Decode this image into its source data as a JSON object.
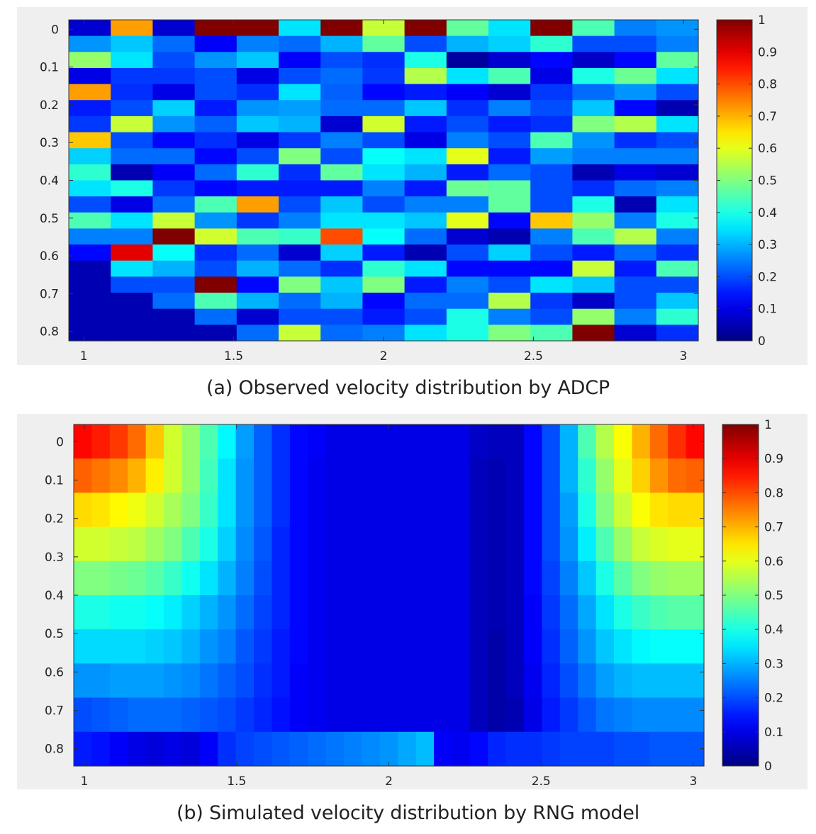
{
  "figure": {
    "caption_a": "(a) Observed velocity distribution by ADCP",
    "caption_b": "(b) Simulated velocity distribution by RNG model"
  },
  "chart_data": [
    {
      "type": "heatmap",
      "colormap": "jet",
      "x_ticks": [
        "1",
        "1.5",
        "2",
        "2.5",
        "3"
      ],
      "x_tick_values": [
        1,
        1.5,
        2,
        2.5,
        3
      ],
      "y_ticks": [
        "0",
        "0.1",
        "0.2",
        "0.3",
        "0.4",
        "0.5",
        "0.6",
        "0.7",
        "0.8"
      ],
      "y_tick_values": [
        0,
        0.1,
        0.2,
        0.3,
        0.4,
        0.5,
        0.6,
        0.7,
        0.8
      ],
      "xlim": [
        0.95,
        3.05
      ],
      "ylim": [
        0.825,
        -0.025
      ],
      "colorbar_ticks": [
        "0",
        "0.1",
        "0.2",
        "0.3",
        "0.4",
        "0.5",
        "0.6",
        "0.7",
        "0.8",
        "0.9",
        "1"
      ],
      "clim": [
        0,
        1
      ],
      "grid": false,
      "values": [
        [
          0.08,
          0.72,
          0.08,
          1.0,
          1.0,
          0.35,
          1.0,
          0.57,
          1.0,
          0.47,
          0.35,
          1.0,
          0.45,
          0.25,
          0.27
        ],
        [
          0.27,
          0.32,
          0.23,
          0.12,
          0.25,
          0.23,
          0.3,
          0.47,
          0.2,
          0.3,
          0.33,
          0.42,
          0.2,
          0.2,
          0.25
        ],
        [
          0.52,
          0.35,
          0.2,
          0.27,
          0.32,
          0.12,
          0.2,
          0.17,
          0.4,
          0.03,
          0.08,
          0.13,
          0.07,
          0.13,
          0.47
        ],
        [
          0.1,
          0.18,
          0.18,
          0.2,
          0.1,
          0.2,
          0.23,
          0.18,
          0.55,
          0.35,
          0.45,
          0.1,
          0.4,
          0.48,
          0.35
        ],
        [
          0.72,
          0.17,
          0.1,
          0.2,
          0.17,
          0.35,
          0.22,
          0.13,
          0.15,
          0.12,
          0.08,
          0.18,
          0.23,
          0.27,
          0.2
        ],
        [
          0.15,
          0.2,
          0.33,
          0.15,
          0.27,
          0.28,
          0.23,
          0.23,
          0.32,
          0.17,
          0.25,
          0.2,
          0.32,
          0.13,
          0.05
        ],
        [
          0.18,
          0.57,
          0.27,
          0.22,
          0.32,
          0.3,
          0.08,
          0.58,
          0.15,
          0.2,
          0.15,
          0.17,
          0.5,
          0.55,
          0.35
        ],
        [
          0.68,
          0.2,
          0.13,
          0.17,
          0.1,
          0.18,
          0.25,
          0.2,
          0.1,
          0.25,
          0.2,
          0.45,
          0.27,
          0.17,
          0.2
        ],
        [
          0.33,
          0.23,
          0.23,
          0.13,
          0.2,
          0.5,
          0.2,
          0.38,
          0.35,
          0.6,
          0.15,
          0.28,
          0.25,
          0.25,
          0.25
        ],
        [
          0.42,
          0.05,
          0.12,
          0.23,
          0.42,
          0.17,
          0.47,
          0.35,
          0.3,
          0.15,
          0.23,
          0.2,
          0.05,
          0.1,
          0.08
        ],
        [
          0.35,
          0.4,
          0.18,
          0.13,
          0.15,
          0.15,
          0.15,
          0.25,
          0.15,
          0.48,
          0.47,
          0.2,
          0.17,
          0.23,
          0.25
        ],
        [
          0.2,
          0.1,
          0.23,
          0.45,
          0.72,
          0.2,
          0.32,
          0.2,
          0.25,
          0.25,
          0.47,
          0.2,
          0.4,
          0.05,
          0.35
        ],
        [
          0.45,
          0.35,
          0.57,
          0.27,
          0.18,
          0.25,
          0.35,
          0.35,
          0.32,
          0.6,
          0.13,
          0.68,
          0.52,
          0.25,
          0.4
        ],
        [
          0.25,
          0.25,
          1.0,
          0.58,
          0.45,
          0.43,
          0.8,
          0.38,
          0.23,
          0.08,
          0.05,
          0.25,
          0.45,
          0.55,
          0.25
        ],
        [
          0.13,
          0.9,
          0.38,
          0.17,
          0.23,
          0.08,
          0.33,
          0.15,
          0.05,
          0.2,
          0.33,
          0.2,
          0.15,
          0.23,
          0.17
        ],
        [
          0.05,
          0.35,
          0.3,
          0.2,
          0.3,
          0.23,
          0.17,
          0.42,
          0.35,
          0.13,
          0.13,
          0.13,
          0.57,
          0.15,
          0.45
        ],
        [
          0.05,
          0.2,
          0.2,
          1.0,
          0.13,
          0.5,
          0.32,
          0.5,
          0.15,
          0.25,
          0.2,
          0.35,
          0.32,
          0.2,
          0.2
        ],
        [
          0.05,
          0.05,
          0.23,
          0.45,
          0.3,
          0.23,
          0.3,
          0.13,
          0.23,
          0.23,
          0.55,
          0.18,
          0.07,
          0.2,
          0.32
        ],
        [
          0.05,
          0.05,
          0.05,
          0.23,
          0.08,
          0.2,
          0.2,
          0.15,
          0.2,
          0.4,
          0.25,
          0.2,
          0.52,
          0.25,
          0.42
        ],
        [
          0.05,
          0.05,
          0.05,
          0.05,
          0.23,
          0.57,
          0.23,
          0.25,
          0.35,
          0.4,
          0.5,
          0.45,
          1.0,
          0.08,
          0.17
        ]
      ]
    },
    {
      "type": "heatmap",
      "colormap": "jet",
      "x_ticks": [
        "1",
        "1.5",
        "2",
        "2.5",
        "3"
      ],
      "x_tick_values": [
        1,
        1.5,
        2,
        2.5,
        3
      ],
      "y_ticks": [
        "0",
        "0.1",
        "0.2",
        "0.3",
        "0.4",
        "0.5",
        "0.6",
        "0.7",
        "0.8"
      ],
      "y_tick_values": [
        0,
        0.1,
        0.2,
        0.3,
        0.4,
        0.5,
        0.6,
        0.7,
        0.8
      ],
      "xlim": [
        0.965,
        3.035
      ],
      "ylim": [
        0.845,
        -0.045
      ],
      "colorbar_ticks": [
        "0",
        "0.1",
        "0.2",
        "0.3",
        "0.4",
        "0.5",
        "0.6",
        "0.7",
        "0.8",
        "0.9",
        "1"
      ],
      "clim": [
        0,
        1
      ],
      "grid": false,
      "values": [
        [
          0.87,
          0.85,
          0.82,
          0.77,
          0.68,
          0.58,
          0.52,
          0.45,
          0.37,
          0.28,
          0.22,
          0.17,
          0.13,
          0.12,
          0.1,
          0.1,
          0.1,
          0.1,
          0.1,
          0.1,
          0.1,
          0.1,
          0.07,
          0.06,
          0.06,
          0.13,
          0.2,
          0.3,
          0.45,
          0.55,
          0.62,
          0.7,
          0.77,
          0.83,
          0.87
        ],
        [
          0.78,
          0.76,
          0.74,
          0.7,
          0.64,
          0.58,
          0.52,
          0.44,
          0.35,
          0.27,
          0.22,
          0.17,
          0.13,
          0.11,
          0.1,
          0.1,
          0.1,
          0.1,
          0.1,
          0.1,
          0.1,
          0.1,
          0.06,
          0.05,
          0.06,
          0.13,
          0.2,
          0.3,
          0.42,
          0.52,
          0.6,
          0.67,
          0.73,
          0.77,
          0.78
        ],
        [
          0.66,
          0.65,
          0.63,
          0.61,
          0.58,
          0.54,
          0.5,
          0.43,
          0.35,
          0.27,
          0.22,
          0.17,
          0.13,
          0.11,
          0.1,
          0.1,
          0.1,
          0.1,
          0.1,
          0.1,
          0.1,
          0.1,
          0.06,
          0.05,
          0.06,
          0.13,
          0.2,
          0.28,
          0.4,
          0.5,
          0.57,
          0.62,
          0.65,
          0.66,
          0.66
        ],
        [
          0.58,
          0.58,
          0.57,
          0.56,
          0.53,
          0.5,
          0.45,
          0.4,
          0.33,
          0.26,
          0.21,
          0.16,
          0.13,
          0.11,
          0.1,
          0.1,
          0.1,
          0.1,
          0.1,
          0.1,
          0.1,
          0.1,
          0.06,
          0.05,
          0.06,
          0.13,
          0.2,
          0.27,
          0.36,
          0.45,
          0.52,
          0.57,
          0.59,
          0.6,
          0.6
        ],
        [
          0.5,
          0.5,
          0.49,
          0.48,
          0.46,
          0.43,
          0.39,
          0.35,
          0.3,
          0.25,
          0.2,
          0.16,
          0.13,
          0.11,
          0.1,
          0.1,
          0.1,
          0.1,
          0.1,
          0.1,
          0.1,
          0.1,
          0.06,
          0.05,
          0.06,
          0.13,
          0.19,
          0.25,
          0.32,
          0.4,
          0.46,
          0.5,
          0.52,
          0.53,
          0.53
        ],
        [
          0.4,
          0.4,
          0.39,
          0.39,
          0.38,
          0.36,
          0.33,
          0.3,
          0.27,
          0.23,
          0.19,
          0.16,
          0.13,
          0.11,
          0.1,
          0.1,
          0.1,
          0.1,
          0.1,
          0.1,
          0.1,
          0.1,
          0.06,
          0.05,
          0.06,
          0.12,
          0.18,
          0.23,
          0.29,
          0.35,
          0.4,
          0.43,
          0.45,
          0.46,
          0.46
        ],
        [
          0.34,
          0.34,
          0.34,
          0.34,
          0.33,
          0.32,
          0.3,
          0.27,
          0.25,
          0.21,
          0.18,
          0.15,
          0.13,
          0.11,
          0.1,
          0.1,
          0.1,
          0.1,
          0.1,
          0.1,
          0.1,
          0.1,
          0.06,
          0.04,
          0.06,
          0.12,
          0.17,
          0.22,
          0.27,
          0.32,
          0.35,
          0.37,
          0.38,
          0.38,
          0.38
        ],
        [
          0.27,
          0.27,
          0.28,
          0.28,
          0.28,
          0.27,
          0.26,
          0.24,
          0.22,
          0.2,
          0.17,
          0.15,
          0.12,
          0.11,
          0.1,
          0.1,
          0.1,
          0.1,
          0.1,
          0.1,
          0.1,
          0.1,
          0.06,
          0.04,
          0.06,
          0.11,
          0.16,
          0.2,
          0.24,
          0.28,
          0.3,
          0.31,
          0.31,
          0.31,
          0.31
        ],
        [
          0.2,
          0.21,
          0.22,
          0.23,
          0.23,
          0.23,
          0.22,
          0.21,
          0.2,
          0.18,
          0.16,
          0.14,
          0.12,
          0.11,
          0.1,
          0.1,
          0.1,
          0.1,
          0.1,
          0.1,
          0.1,
          0.1,
          0.06,
          0.04,
          0.05,
          0.1,
          0.15,
          0.18,
          0.21,
          0.24,
          0.25,
          0.26,
          0.26,
          0.26,
          0.26
        ],
        [
          0.15,
          0.14,
          0.12,
          0.1,
          0.09,
          0.1,
          0.09,
          0.12,
          0.17,
          0.19,
          0.2,
          0.21,
          0.22,
          0.23,
          0.24,
          0.25,
          0.26,
          0.27,
          0.29,
          0.31,
          0.12,
          0.11,
          0.13,
          0.16,
          0.17,
          0.17,
          0.18,
          0.19,
          0.19,
          0.19,
          0.2,
          0.2,
          0.21,
          0.21,
          0.21
        ]
      ]
    }
  ]
}
